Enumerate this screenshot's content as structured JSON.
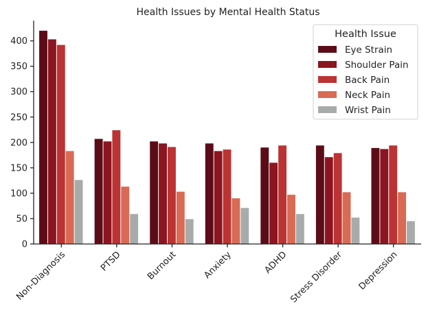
{
  "chart_data": {
    "type": "bar",
    "title": "Health Issues by Mental Health Status",
    "xlabel": "",
    "ylabel": "",
    "ylim": [
      0,
      440
    ],
    "yticks": [
      0,
      50,
      100,
      150,
      200,
      250,
      300,
      350,
      400
    ],
    "categories": [
      "Non-Diagnosis",
      "PTSD",
      "Burnout",
      "Anxiety",
      "ADHD",
      "Stress Disorder",
      "Depression"
    ],
    "legend": {
      "title": "Health Issue",
      "placement": "top-right"
    },
    "grid": false,
    "series": [
      {
        "name": "Eye Strain",
        "color": "#5c0c17",
        "values": [
          420,
          207,
          202,
          198,
          190,
          194,
          189
        ]
      },
      {
        "name": "Shoulder Pain",
        "color": "#8b1520",
        "values": [
          403,
          202,
          198,
          183,
          160,
          171,
          187
        ]
      },
      {
        "name": "Back Pain",
        "color": "#bc3333",
        "values": [
          392,
          224,
          191,
          186,
          194,
          179,
          194
        ]
      },
      {
        "name": "Neck Pain",
        "color": "#d96a54",
        "values": [
          183,
          113,
          103,
          90,
          97,
          102,
          102
        ]
      },
      {
        "name": "Wrist Pain",
        "color": "#a7acab",
        "values": [
          126,
          59,
          49,
          71,
          59,
          52,
          45
        ]
      }
    ]
  }
}
